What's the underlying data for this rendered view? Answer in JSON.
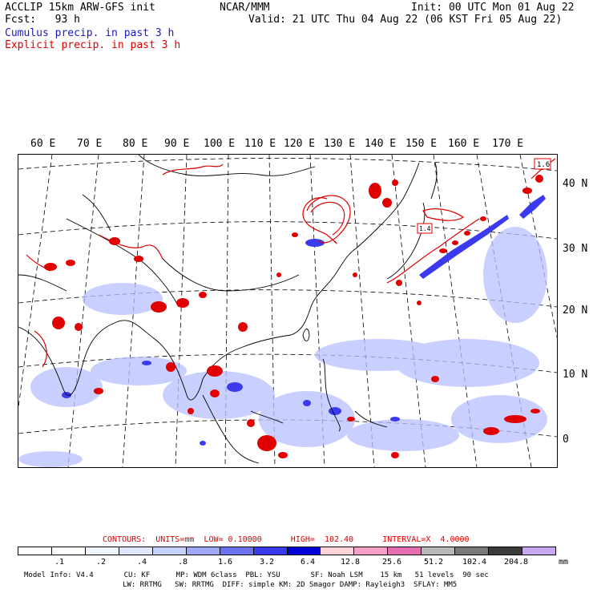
{
  "header": {
    "line1_left": "ACCLIP 15km ARW-GFS init",
    "line1_center": "NCAR/MMM",
    "line1_right": "Init: 00 UTC Mon 01 Aug 22",
    "line2_left": "Fcst:   93 h",
    "line2_right": "Valid: 21 UTC Thu 04 Aug 22 (06 KST Fri 05 Aug 22)",
    "cumulus_label": "Cumulus precip. in past 3 h",
    "explicit_label": "Explicit precip. in past 3 h"
  },
  "colors": {
    "cumulus": "#1a1adf",
    "explicit": "#e00000",
    "coast": "#000000",
    "grid": "#000000"
  },
  "map": {
    "lon_labels": [
      "60 E",
      "70 E",
      "80 E",
      "90 E",
      "100 E",
      "110 E",
      "120 E",
      "130 E",
      "140 E",
      "150 E",
      "160 E",
      "170 E"
    ],
    "lat_labels": [
      "40 N",
      "30 N",
      "20 N",
      "10 N",
      "0"
    ],
    "contour_label_a": "1.6",
    "contour_label_b": "1.4"
  },
  "legend": {
    "contours_line": "CONTOURS:  UNITS=mm  LOW= 0.10000      HIGH=  102.40      INTERVAL=X  4.0000",
    "colorbar_colors": [
      "#ffffff",
      "#ffffff",
      "#f0f4ff",
      "#dfe7ff",
      "#c8d2ff",
      "#9ea8f5",
      "#6b73ee",
      "#3a3aee",
      "#0000d8",
      "#ffd4d8",
      "#f6a0c8",
      "#e86eb4",
      "#b8b8b8",
      "#7a7a7a",
      "#3c3c3c",
      "#c8a8f0"
    ],
    "colorbar_labels": [
      ".1",
      ".2",
      ".4",
      ".8",
      "1.6",
      "3.2",
      "6.4",
      "12.8",
      "25.6",
      "51.2",
      "102.4",
      "204.8"
    ],
    "units": "mm",
    "model_info_line1": "Model Info: V4.4       CU: KF      MP: WDM 6class  PBL: YSU       SF: Noah LSM    15 km   51 levels  90 sec",
    "model_info_line2": "LW: RRTMG   SW: RRTMG  DIFF: simple KM: 2D Smagor DAMP: Rayleigh3  SFLAY: MM5"
  }
}
